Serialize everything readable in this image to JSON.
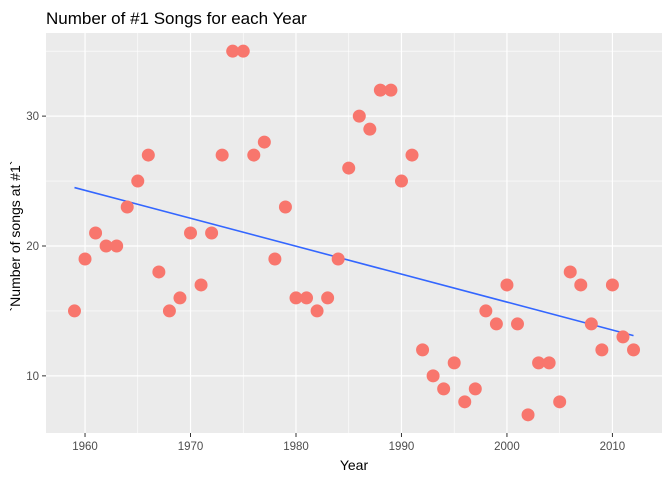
{
  "chart_data": {
    "type": "scatter",
    "title": "Number of #1 Songs for each Year",
    "xlabel": "Year",
    "ylabel": "`Number of songs at #1`",
    "xlim": [
      1956.3,
      2014.7
    ],
    "ylim": [
      5.6,
      36.4
    ],
    "x_ticks": [
      1960,
      1970,
      1980,
      1990,
      2000,
      2010
    ],
    "x_tick_labels": [
      "1960",
      "1970",
      "1980",
      "1990",
      "2000",
      "2010"
    ],
    "y_ticks": [
      10,
      20,
      30
    ],
    "y_tick_labels": [
      "10",
      "20",
      "30"
    ],
    "grid": true,
    "points": [
      {
        "x": 1959,
        "y": 15
      },
      {
        "x": 1960,
        "y": 19
      },
      {
        "x": 1961,
        "y": 21
      },
      {
        "x": 1962,
        "y": 20
      },
      {
        "x": 1963,
        "y": 20
      },
      {
        "x": 1964,
        "y": 23
      },
      {
        "x": 1965,
        "y": 25
      },
      {
        "x": 1966,
        "y": 27
      },
      {
        "x": 1967,
        "y": 18
      },
      {
        "x": 1968,
        "y": 15
      },
      {
        "x": 1969,
        "y": 16
      },
      {
        "x": 1970,
        "y": 21
      },
      {
        "x": 1971,
        "y": 17
      },
      {
        "x": 1972,
        "y": 21
      },
      {
        "x": 1973,
        "y": 27
      },
      {
        "x": 1974,
        "y": 35
      },
      {
        "x": 1975,
        "y": 35
      },
      {
        "x": 1976,
        "y": 27
      },
      {
        "x": 1977,
        "y": 28
      },
      {
        "x": 1978,
        "y": 19
      },
      {
        "x": 1979,
        "y": 23
      },
      {
        "x": 1980,
        "y": 16
      },
      {
        "x": 1981,
        "y": 16
      },
      {
        "x": 1982,
        "y": 15
      },
      {
        "x": 1983,
        "y": 16
      },
      {
        "x": 1984,
        "y": 19
      },
      {
        "x": 1985,
        "y": 26
      },
      {
        "x": 1986,
        "y": 30
      },
      {
        "x": 1987,
        "y": 29
      },
      {
        "x": 1988,
        "y": 32
      },
      {
        "x": 1989,
        "y": 32
      },
      {
        "x": 1990,
        "y": 25
      },
      {
        "x": 1991,
        "y": 27
      },
      {
        "x": 1992,
        "y": 12
      },
      {
        "x": 1993,
        "y": 10
      },
      {
        "x": 1994,
        "y": 9
      },
      {
        "x": 1995,
        "y": 11
      },
      {
        "x": 1996,
        "y": 8
      },
      {
        "x": 1997,
        "y": 9
      },
      {
        "x": 1998,
        "y": 15
      },
      {
        "x": 1999,
        "y": 14
      },
      {
        "x": 2000,
        "y": 17
      },
      {
        "x": 2001,
        "y": 14
      },
      {
        "x": 2002,
        "y": 7
      },
      {
        "x": 2003,
        "y": 11
      },
      {
        "x": 2004,
        "y": 11
      },
      {
        "x": 2005,
        "y": 8
      },
      {
        "x": 2006,
        "y": 18
      },
      {
        "x": 2007,
        "y": 17
      },
      {
        "x": 2008,
        "y": 14
      },
      {
        "x": 2009,
        "y": 12
      },
      {
        "x": 2010,
        "y": 17
      },
      {
        "x": 2011,
        "y": 13
      },
      {
        "x": 2012,
        "y": 12
      }
    ],
    "trend_line": {
      "type": "linear",
      "x": [
        1959,
        2012
      ],
      "y": [
        24.5,
        13.1
      ]
    },
    "colors": {
      "panel_background": "#ebebeb",
      "grid": "#ffffff",
      "point": "#f8766d",
      "trend_line": "#3366ff"
    }
  }
}
